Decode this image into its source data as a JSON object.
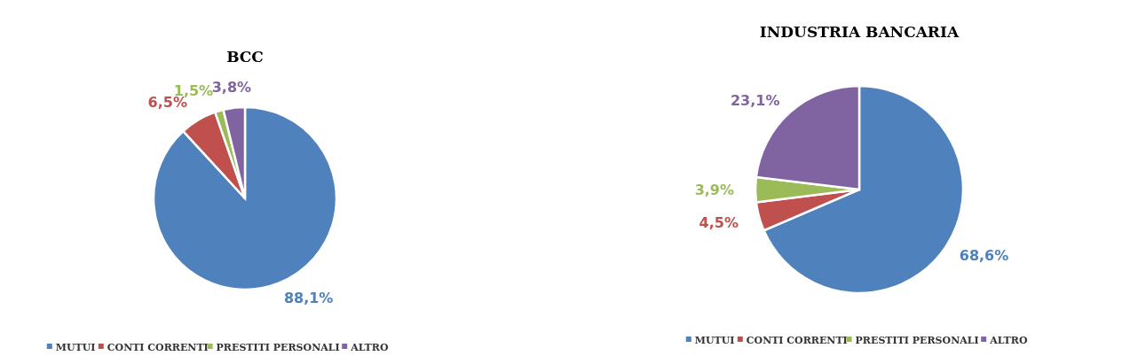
{
  "chart_data": [
    {
      "type": "pie",
      "title": "BCC",
      "categories": [
        "MUTUI",
        "CONTI CORRENTI",
        "PRESTITI PERSONALI",
        "ALTRO"
      ],
      "values": [
        88.1,
        6.5,
        1.5,
        3.8
      ],
      "colors": [
        "#4f81bd",
        "#c0504d",
        "#9bbb59",
        "#8064a2"
      ],
      "value_labels": [
        "88,1%",
        "6,5%",
        "1,5%",
        "3,8%"
      ],
      "legend": "bottom"
    },
    {
      "type": "pie",
      "title": "INDUSTRIA BANCARIA",
      "categories": [
        "MUTUI",
        "CONTI CORRENTI",
        "PRESTITI PERSONALI",
        "ALTRO"
      ],
      "values": [
        68.6,
        4.5,
        3.9,
        23.1
      ],
      "colors": [
        "#4f81bd",
        "#c0504d",
        "#9bbb59",
        "#8064a2"
      ],
      "value_labels": [
        "68,6%",
        "4,5%",
        "3,9%",
        "23,1%"
      ],
      "legend": "bottom"
    }
  ]
}
